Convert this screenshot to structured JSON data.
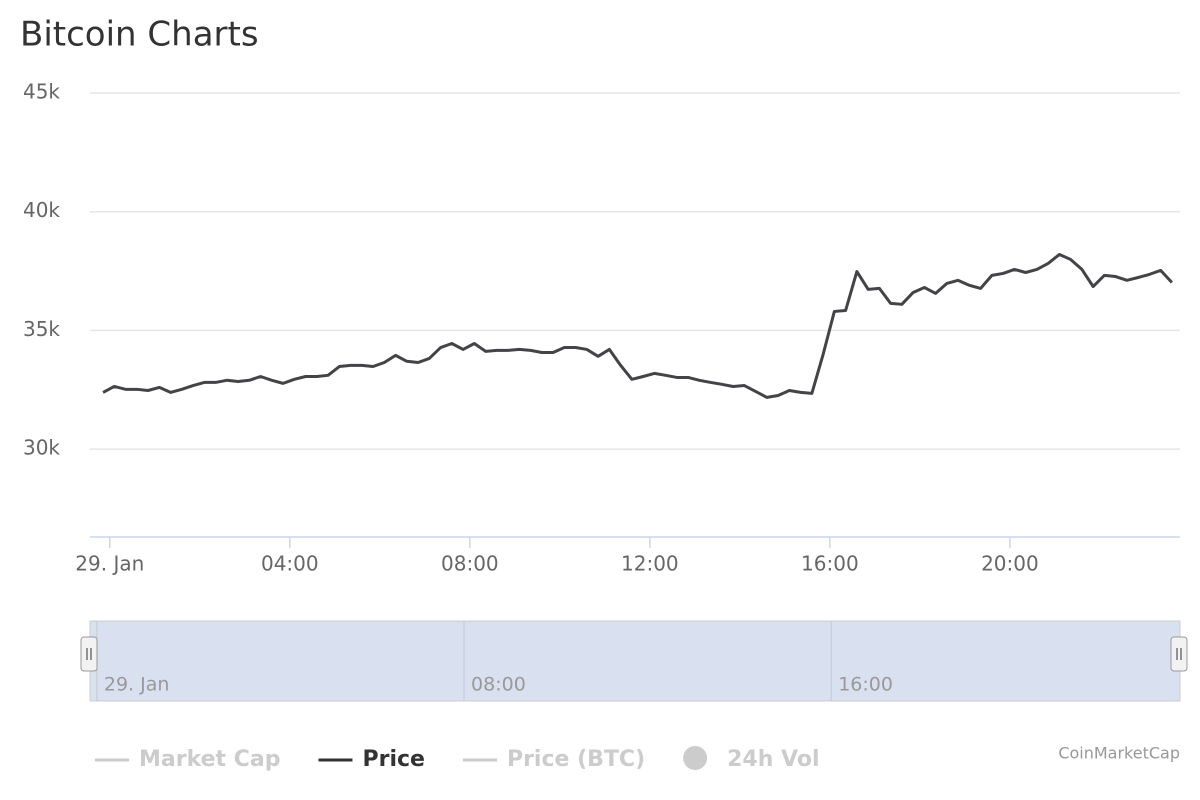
{
  "chart_data": {
    "type": "line",
    "title": "Bitcoin Charts",
    "x": [
      -0.15,
      0.1,
      0.35,
      0.6,
      0.85,
      1.1,
      1.35,
      1.6,
      1.85,
      2.1,
      2.35,
      2.6,
      2.85,
      3.1,
      3.35,
      3.6,
      3.85,
      4.1,
      4.35,
      4.6,
      4.85,
      5.1,
      5.35,
      5.6,
      5.85,
      6.1,
      6.35,
      6.6,
      6.85,
      7.1,
      7.35,
      7.6,
      7.85,
      8.1,
      8.35,
      8.6,
      8.85,
      9.1,
      9.35,
      9.6,
      9.85,
      10.1,
      10.35,
      10.6,
      10.85,
      11.1,
      11.35,
      11.6,
      11.85,
      12.1,
      12.35,
      12.6,
      12.85,
      13.1,
      13.35,
      13.6,
      13.85,
      14.1,
      14.35,
      14.6,
      14.85,
      15.1,
      15.35,
      15.6,
      15.85,
      16.1,
      16.35,
      16.6,
      16.85,
      17.1,
      17.35,
      17.6,
      17.85,
      18.1,
      18.35,
      18.6,
      18.85,
      19.1,
      19.35,
      19.6,
      19.85,
      20.1,
      20.35,
      20.6,
      20.85,
      21.1,
      21.35,
      21.6,
      21.85,
      22.1,
      22.35,
      22.6,
      22.85,
      23.1,
      23.35,
      23.6
    ],
    "series": [
      {
        "name": "Price",
        "color": "#434348",
        "values": [
          32390,
          32640,
          32520,
          32520,
          32470,
          32600,
          32390,
          32520,
          32680,
          32810,
          32810,
          32900,
          32850,
          32900,
          33060,
          32900,
          32770,
          32940,
          33060,
          33060,
          33110,
          33480,
          33530,
          33530,
          33480,
          33650,
          33950,
          33700,
          33650,
          33820,
          34280,
          34450,
          34200,
          34450,
          34120,
          34160,
          34160,
          34200,
          34160,
          34070,
          34070,
          34280,
          34280,
          34200,
          33910,
          34200,
          33530,
          32940,
          33060,
          33190,
          33110,
          33020,
          33020,
          32900,
          32810,
          32730,
          32640,
          32680,
          32430,
          32180,
          32260,
          32470,
          32390,
          32350,
          33990,
          35800,
          35840,
          37480,
          36730,
          36770,
          36140,
          36100,
          36600,
          36810,
          36560,
          36980,
          37110,
          36900,
          36770,
          37320,
          37400,
          37570,
          37440,
          37570,
          37820,
          38200,
          37990,
          37570,
          36850,
          37320,
          37270,
          37110,
          37230,
          37360,
          37530,
          37020
        ]
      }
    ],
    "xlim": [
      -0.44,
      23.78
    ],
    "xticks": [
      {
        "value": 0,
        "label": "29. Jan"
      },
      {
        "value": 4,
        "label": "04:00"
      },
      {
        "value": 8,
        "label": "08:00"
      },
      {
        "value": 12,
        "label": "12:00"
      },
      {
        "value": 16,
        "label": "16:00"
      },
      {
        "value": 20,
        "label": "20:00"
      }
    ],
    "ylim": [
      26300,
      45000
    ],
    "yticks": [
      {
        "value": 30000,
        "label": "30k"
      },
      {
        "value": 35000,
        "label": "35k"
      },
      {
        "value": 40000,
        "label": "40k"
      },
      {
        "value": 45000,
        "label": "45k"
      }
    ],
    "grid": true,
    "navigator": {
      "xlim": [
        -0.15,
        23.6
      ],
      "xticks": [
        {
          "value": 0,
          "label": "29. Jan"
        },
        {
          "value": 8,
          "label": "08:00"
        },
        {
          "value": 16,
          "label": "16:00"
        }
      ]
    },
    "hidden_series": [
      {
        "name": "Market Cap",
        "symbol": "line",
        "color": "#cccccc"
      },
      {
        "name": "Price (BTC)",
        "symbol": "line",
        "color": "#cccccc"
      },
      {
        "name": "24h Vol",
        "symbol": "circle",
        "color": "#cccccc"
      }
    ],
    "legend": "bottom",
    "credits": "CoinMarketCap"
  }
}
